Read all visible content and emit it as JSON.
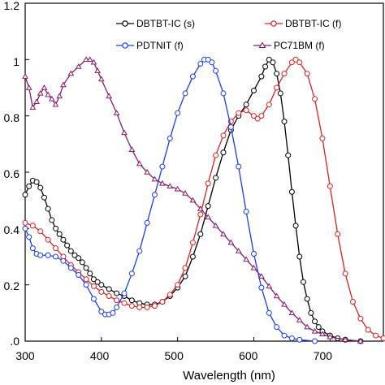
{
  "chart_data": {
    "type": "line",
    "xlabel": "Wavelength (nm)",
    "ylabel": "",
    "xlim": [
      300,
      770
    ],
    "ylim": [
      0,
      1.2
    ],
    "x_ticks": [
      300,
      400,
      500,
      600,
      700
    ],
    "x_tick_labels": [
      "300",
      "400",
      "500",
      "600",
      "700"
    ],
    "y_ticks": [
      0,
      0.2,
      0.4,
      0.6,
      0.8,
      1.0,
      1.2
    ],
    "y_tick_labels": [
      ".0",
      "0.2",
      "0.4",
      "0.6",
      "0.8",
      "1",
      "1.2"
    ],
    "legend_placement": "top",
    "series": [
      {
        "name": "DBTBT-IC (s)",
        "color": "#000000",
        "marker": "circle",
        "points": [
          [
            300,
            0.52
          ],
          [
            305,
            0.55
          ],
          [
            310,
            0.57
          ],
          [
            315,
            0.565
          ],
          [
            320,
            0.545
          ],
          [
            325,
            0.51
          ],
          [
            330,
            0.47
          ],
          [
            335,
            0.43
          ],
          [
            340,
            0.4
          ],
          [
            345,
            0.38
          ],
          [
            350,
            0.36
          ],
          [
            355,
            0.34
          ],
          [
            360,
            0.32
          ],
          [
            365,
            0.305
          ],
          [
            370,
            0.295
          ],
          [
            375,
            0.28
          ],
          [
            380,
            0.26
          ],
          [
            385,
            0.24
          ],
          [
            390,
            0.22
          ],
          [
            395,
            0.21
          ],
          [
            400,
            0.2
          ],
          [
            410,
            0.185
          ],
          [
            420,
            0.17
          ],
          [
            430,
            0.16
          ],
          [
            440,
            0.145
          ],
          [
            450,
            0.135
          ],
          [
            460,
            0.13
          ],
          [
            470,
            0.13
          ],
          [
            480,
            0.14
          ],
          [
            490,
            0.16
          ],
          [
            500,
            0.19
          ],
          [
            510,
            0.23
          ],
          [
            520,
            0.3
          ],
          [
            530,
            0.38
          ],
          [
            540,
            0.48
          ],
          [
            550,
            0.58
          ],
          [
            560,
            0.67
          ],
          [
            570,
            0.75
          ],
          [
            580,
            0.8
          ],
          [
            590,
            0.84
          ],
          [
            600,
            0.89
          ],
          [
            610,
            0.94
          ],
          [
            615,
            0.975
          ],
          [
            620,
            1.0
          ],
          [
            625,
            0.99
          ],
          [
            630,
            0.95
          ],
          [
            635,
            0.88
          ],
          [
            640,
            0.78
          ],
          [
            645,
            0.66
          ],
          [
            650,
            0.53
          ],
          [
            655,
            0.41
          ],
          [
            660,
            0.3
          ],
          [
            665,
            0.21
          ],
          [
            670,
            0.15
          ],
          [
            675,
            0.1
          ],
          [
            680,
            0.07
          ],
          [
            685,
            0.05
          ],
          [
            690,
            0.035
          ],
          [
            700,
            0.02
          ],
          [
            710,
            0.01
          ],
          [
            720,
            0.005
          ],
          [
            740,
            0.0
          ]
        ]
      },
      {
        "name": "DBTBT-IC (f)",
        "color": "#e02020",
        "marker": "circle",
        "points": [
          [
            300,
            0.42
          ],
          [
            310,
            0.41
          ],
          [
            320,
            0.39
          ],
          [
            330,
            0.36
          ],
          [
            340,
            0.33
          ],
          [
            350,
            0.3
          ],
          [
            360,
            0.27
          ],
          [
            370,
            0.245
          ],
          [
            380,
            0.22
          ],
          [
            390,
            0.195
          ],
          [
            400,
            0.175
          ],
          [
            410,
            0.16
          ],
          [
            420,
            0.145
          ],
          [
            430,
            0.135
          ],
          [
            440,
            0.125
          ],
          [
            450,
            0.12
          ],
          [
            460,
            0.12
          ],
          [
            470,
            0.125
          ],
          [
            480,
            0.14
          ],
          [
            490,
            0.165
          ],
          [
            500,
            0.2
          ],
          [
            510,
            0.26
          ],
          [
            520,
            0.35
          ],
          [
            530,
            0.45
          ],
          [
            540,
            0.56
          ],
          [
            550,
            0.66
          ],
          [
            560,
            0.73
          ],
          [
            570,
            0.78
          ],
          [
            580,
            0.81
          ],
          [
            590,
            0.82
          ],
          [
            600,
            0.8
          ],
          [
            605,
            0.79
          ],
          [
            610,
            0.8
          ],
          [
            620,
            0.84
          ],
          [
            630,
            0.9
          ],
          [
            640,
            0.95
          ],
          [
            650,
            0.99
          ],
          [
            655,
            1.0
          ],
          [
            660,
            0.99
          ],
          [
            670,
            0.95
          ],
          [
            680,
            0.86
          ],
          [
            690,
            0.72
          ],
          [
            700,
            0.55
          ],
          [
            710,
            0.38
          ],
          [
            720,
            0.24
          ],
          [
            730,
            0.14
          ],
          [
            740,
            0.08
          ],
          [
            750,
            0.04
          ],
          [
            760,
            0.02
          ],
          [
            770,
            0.01
          ]
        ]
      },
      {
        "name": "PDTNIT (f)",
        "color": "#1a3cff",
        "marker": "circle",
        "points": [
          [
            300,
            0.4
          ],
          [
            305,
            0.37
          ],
          [
            310,
            0.33
          ],
          [
            315,
            0.31
          ],
          [
            320,
            0.305
          ],
          [
            330,
            0.305
          ],
          [
            340,
            0.3
          ],
          [
            350,
            0.285
          ],
          [
            360,
            0.26
          ],
          [
            370,
            0.235
          ],
          [
            380,
            0.2
          ],
          [
            390,
            0.15
          ],
          [
            400,
            0.105
          ],
          [
            405,
            0.095
          ],
          [
            410,
            0.095
          ],
          [
            415,
            0.1
          ],
          [
            420,
            0.12
          ],
          [
            430,
            0.17
          ],
          [
            440,
            0.24
          ],
          [
            450,
            0.32
          ],
          [
            460,
            0.42
          ],
          [
            470,
            0.52
          ],
          [
            480,
            0.62
          ],
          [
            490,
            0.72
          ],
          [
            500,
            0.81
          ],
          [
            510,
            0.88
          ],
          [
            520,
            0.94
          ],
          [
            530,
            0.985
          ],
          [
            535,
            1.0
          ],
          [
            540,
            1.0
          ],
          [
            545,
            0.99
          ],
          [
            550,
            0.96
          ],
          [
            560,
            0.88
          ],
          [
            570,
            0.76
          ],
          [
            580,
            0.62
          ],
          [
            590,
            0.46
          ],
          [
            600,
            0.31
          ],
          [
            610,
            0.19
          ],
          [
            620,
            0.1
          ],
          [
            630,
            0.05
          ],
          [
            640,
            0.02
          ],
          [
            650,
            0.01
          ],
          [
            660,
            0.005
          ],
          [
            680,
            0.0
          ]
        ]
      },
      {
        "name": "PC71BM (f)",
        "color": "#8b1a6b",
        "marker": "triangle",
        "points": [
          [
            300,
            0.94
          ],
          [
            305,
            0.9
          ],
          [
            310,
            0.83
          ],
          [
            315,
            0.85
          ],
          [
            320,
            0.88
          ],
          [
            325,
            0.9
          ],
          [
            330,
            0.875
          ],
          [
            335,
            0.86
          ],
          [
            340,
            0.84
          ],
          [
            345,
            0.87
          ],
          [
            350,
            0.91
          ],
          [
            360,
            0.95
          ],
          [
            370,
            0.975
          ],
          [
            380,
            1.0
          ],
          [
            385,
            1.0
          ],
          [
            390,
            0.99
          ],
          [
            395,
            0.96
          ],
          [
            400,
            0.93
          ],
          [
            410,
            0.87
          ],
          [
            420,
            0.81
          ],
          [
            430,
            0.74
          ],
          [
            440,
            0.68
          ],
          [
            450,
            0.63
          ],
          [
            460,
            0.6
          ],
          [
            470,
            0.575
          ],
          [
            480,
            0.56
          ],
          [
            490,
            0.55
          ],
          [
            500,
            0.54
          ],
          [
            510,
            0.525
          ],
          [
            520,
            0.5
          ],
          [
            530,
            0.47
          ],
          [
            540,
            0.44
          ],
          [
            550,
            0.41
          ],
          [
            560,
            0.38
          ],
          [
            570,
            0.35
          ],
          [
            580,
            0.32
          ],
          [
            590,
            0.29
          ],
          [
            600,
            0.26
          ],
          [
            610,
            0.23
          ],
          [
            620,
            0.195
          ],
          [
            630,
            0.16
          ],
          [
            640,
            0.13
          ],
          [
            650,
            0.1
          ],
          [
            660,
            0.075
          ],
          [
            670,
            0.05
          ],
          [
            680,
            0.035
          ],
          [
            690,
            0.025
          ],
          [
            700,
            0.015
          ],
          [
            720,
            0.005
          ],
          [
            740,
            0.0
          ]
        ]
      }
    ]
  }
}
